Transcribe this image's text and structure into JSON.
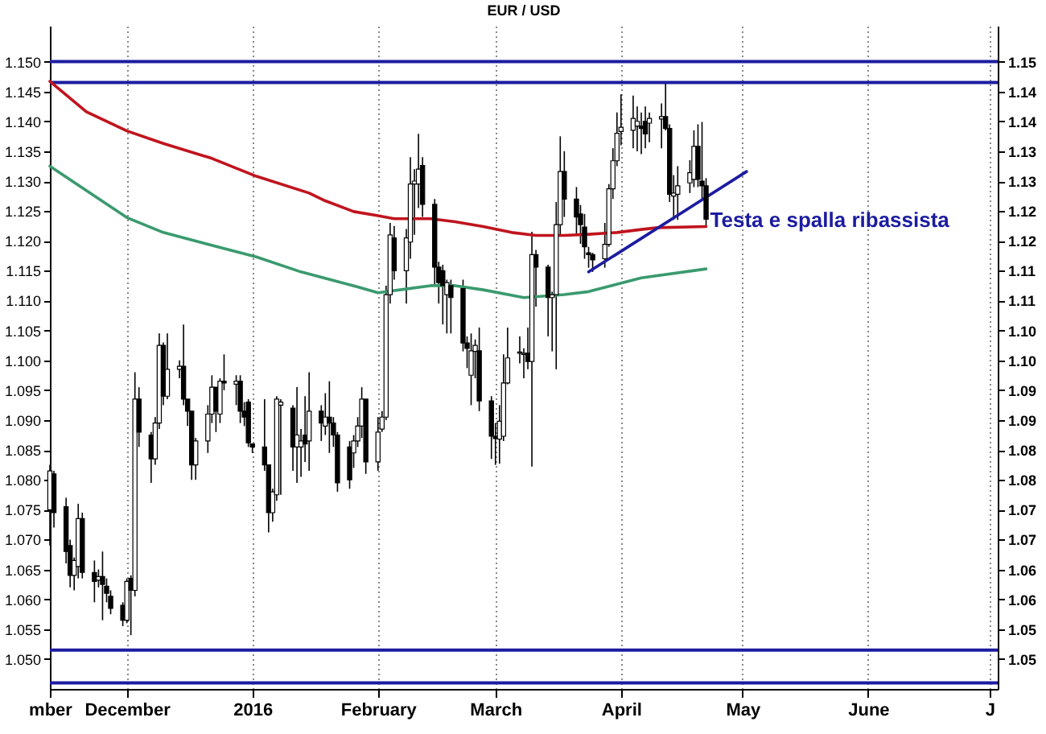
{
  "chart_data": {
    "type": "candlestick",
    "title": "EUR / USD",
    "x": [
      "2015-11-12",
      "2015-11-13",
      "2015-11-16",
      "2015-11-17",
      "2015-11-18",
      "2015-11-19",
      "2015-11-20",
      "2015-11-23",
      "2015-11-24",
      "2015-11-25",
      "2015-11-26",
      "2015-11-27",
      "2015-11-30",
      "2015-12-01",
      "2015-12-02",
      "2015-12-03",
      "2015-12-04",
      "2015-12-07",
      "2015-12-08",
      "2015-12-09",
      "2015-12-10",
      "2015-12-11",
      "2015-12-14",
      "2015-12-15",
      "2015-12-16",
      "2015-12-17",
      "2015-12-18",
      "2015-12-21",
      "2015-12-22",
      "2015-12-23",
      "2015-12-24",
      "2015-12-25",
      "2015-12-28",
      "2015-12-29",
      "2015-12-30",
      "2015-12-31",
      "2016-01-01",
      "2016-01-04",
      "2016-01-05",
      "2016-01-06",
      "2016-01-07",
      "2016-01-08",
      "2016-01-11",
      "2016-01-12",
      "2016-01-13",
      "2016-01-14",
      "2016-01-15",
      "2016-01-18",
      "2016-01-19",
      "2016-01-20",
      "2016-01-21",
      "2016-01-22",
      "2016-01-25",
      "2016-01-26",
      "2016-01-27",
      "2016-01-28",
      "2016-01-29",
      "2016-02-01",
      "2016-02-02",
      "2016-02-03",
      "2016-02-04",
      "2016-02-05",
      "2016-02-08",
      "2016-02-09",
      "2016-02-10",
      "2016-02-11",
      "2016-02-12",
      "2016-02-15",
      "2016-02-16",
      "2016-02-17",
      "2016-02-18",
      "2016-02-19",
      "2016-02-22",
      "2016-02-23",
      "2016-02-24",
      "2016-02-25",
      "2016-02-26",
      "2016-02-29",
      "2016-03-01",
      "2016-03-02",
      "2016-03-03",
      "2016-03-04",
      "2016-03-07",
      "2016-03-08",
      "2016-03-09",
      "2016-03-10",
      "2016-03-11",
      "2016-03-14",
      "2016-03-15",
      "2016-03-16",
      "2016-03-17",
      "2016-03-18",
      "2016-03-21",
      "2016-03-22",
      "2016-03-23",
      "2016-03-24",
      "2016-03-25",
      "2016-03-28",
      "2016-03-29",
      "2016-03-30",
      "2016-03-31",
      "2016-04-01",
      "2016-04-04",
      "2016-04-05",
      "2016-04-06",
      "2016-04-07",
      "2016-04-08",
      "2016-04-11",
      "2016-04-12",
      "2016-04-13",
      "2016-04-14",
      "2016-04-15",
      "2016-04-18",
      "2016-04-19",
      "2016-04-20",
      "2016-04-21",
      "2016-04-22"
    ],
    "ohlc": [
      [
        1.075,
        1.0825,
        1.069,
        1.0815
      ],
      [
        1.081,
        1.0815,
        1.072,
        1.0745
      ],
      [
        1.0755,
        1.077,
        1.066,
        1.068
      ],
      [
        1.069,
        1.07,
        1.062,
        1.064
      ],
      [
        1.064,
        1.067,
        1.0615,
        1.0665
      ],
      [
        1.0655,
        1.076,
        1.0635,
        1.0735
      ],
      [
        1.0735,
        1.0745,
        1.0635,
        1.0645
      ],
      [
        1.0645,
        1.0665,
        1.0595,
        1.063
      ],
      [
        1.0632,
        1.065,
        1.062,
        1.0638
      ],
      [
        1.0638,
        1.068,
        1.0565,
        1.0625
      ],
      [
        1.0622,
        1.0635,
        1.0595,
        1.061
      ],
      [
        1.0605,
        1.0615,
        1.0575,
        1.0585
      ],
      [
        1.059,
        1.0595,
        1.0555,
        1.0565
      ],
      [
        1.0565,
        1.0635,
        1.056,
        1.063
      ],
      [
        1.0635,
        1.064,
        1.054,
        1.0615
      ],
      [
        1.0615,
        1.098,
        1.0605,
        1.0935
      ],
      [
        1.0935,
        1.0955,
        1.0855,
        1.088
      ],
      [
        1.0875,
        1.088,
        1.0795,
        1.0835
      ],
      [
        1.0835,
        1.0905,
        1.0825,
        1.0895
      ],
      [
        1.0895,
        1.1045,
        1.0885,
        1.1025
      ],
      [
        1.1025,
        1.103,
        1.0925,
        1.094
      ],
      [
        1.094,
        1.1045,
        1.0935,
        1.0985
      ],
      [
        1.0985,
        1.1,
        1.097,
        1.099
      ],
      [
        1.099,
        1.106,
        1.0925,
        1.0935
      ],
      [
        1.0935,
        1.0935,
        1.089,
        1.0915
      ],
      [
        1.0915,
        1.0915,
        1.08,
        1.0825
      ],
      [
        1.0825,
        1.087,
        1.08,
        1.0865
      ],
      [
        1.0865,
        1.0925,
        1.0845,
        1.091
      ],
      [
        1.091,
        1.0975,
        1.0895,
        1.0955
      ],
      [
        1.0955,
        1.0955,
        1.088,
        1.0915
      ],
      [
        1.091,
        1.097,
        1.0895,
        1.0965
      ],
      [
        1.0965,
        1.101,
        1.095,
        1.0962
      ],
      [
        1.096,
        1.0975,
        1.0925,
        1.0965
      ],
      [
        1.0965,
        1.0975,
        1.0895,
        1.0915
      ],
      [
        1.0915,
        1.093,
        1.089,
        1.0905
      ],
      [
        1.093,
        1.0935,
        1.0855,
        1.0862
      ],
      [
        1.086,
        1.086,
        1.0845,
        1.0855
      ],
      [
        1.0855,
        1.0935,
        1.0815,
        1.0825
      ],
      [
        1.0825,
        1.0825,
        1.0712,
        1.0745
      ],
      [
        1.0745,
        1.0785,
        1.073,
        1.078
      ],
      [
        1.0775,
        1.094,
        1.0765,
        1.0935
      ],
      [
        1.0925,
        1.0935,
        1.0775,
        1.093
      ],
      [
        1.092,
        1.0925,
        1.0815,
        1.0855
      ],
      [
        1.0855,
        1.0955,
        1.0795,
        1.0875
      ],
      [
        1.0855,
        1.0885,
        1.0805,
        1.0865
      ],
      [
        1.0875,
        1.094,
        1.083,
        1.086
      ],
      [
        1.0865,
        1.098,
        1.0815,
        1.0915
      ],
      [
        1.0915,
        1.0925,
        1.0865,
        1.0895
      ],
      [
        1.089,
        1.0945,
        1.0875,
        1.0905
      ],
      [
        1.0905,
        1.0965,
        1.0845,
        1.0895
      ],
      [
        1.0895,
        1.0905,
        1.0855,
        1.0875
      ],
      [
        1.0875,
        1.088,
        1.078,
        1.0795
      ],
      [
        1.0855,
        1.0865,
        1.0785,
        1.08
      ],
      [
        1.0845,
        1.0875,
        1.082,
        1.0865
      ],
      [
        1.0865,
        1.0905,
        1.0855,
        1.089
      ],
      [
        1.089,
        1.0955,
        1.087,
        1.0935
      ],
      [
        1.0935,
        1.0935,
        1.081,
        1.083
      ],
      [
        1.083,
        1.0905,
        1.0815,
        1.088
      ],
      [
        1.0885,
        1.0915,
        1.088,
        1.0905
      ],
      [
        1.0905,
        1.1125,
        1.09,
        1.111
      ],
      [
        1.111,
        1.123,
        1.1095,
        1.121
      ],
      [
        1.1205,
        1.1225,
        1.1135,
        1.115
      ],
      [
        1.115,
        1.122,
        1.1095,
        1.1205
      ],
      [
        1.1198,
        1.134,
        1.117,
        1.1295
      ],
      [
        1.1295,
        1.132,
        1.121,
        1.13
      ],
      [
        1.1295,
        1.1379,
        1.1255,
        1.132
      ],
      [
        1.1326,
        1.134,
        1.124,
        1.1261
      ],
      [
        1.1261,
        1.127,
        1.1125,
        1.1156
      ],
      [
        1.1156,
        1.1165,
        1.1095,
        1.113
      ],
      [
        1.115,
        1.116,
        1.106,
        1.1125
      ],
      [
        1.111,
        1.1135,
        1.1045,
        1.113
      ],
      [
        1.1125,
        1.1135,
        1.1045,
        1.1105
      ],
      [
        1.112,
        1.1135,
        1.1015,
        1.1029
      ],
      [
        1.1029,
        1.104,
        1.0987,
        1.102
      ],
      [
        1.0975,
        1.1045,
        1.0925,
        1.1016
      ],
      [
        1.1015,
        1.1035,
        1.097,
        1.1025
      ],
      [
        1.1016,
        1.1055,
        1.0915,
        1.0932
      ],
      [
        1.0932,
        1.094,
        1.0835,
        1.0873
      ],
      [
        1.0873,
        1.0895,
        1.0825,
        1.0869
      ],
      [
        1.0868,
        1.0925,
        1.0827,
        1.0898
      ],
      [
        1.0873,
        1.101,
        1.0865,
        1.0962
      ],
      [
        1.0962,
        1.1055,
        1.096,
        1.1004
      ],
      [
        1.1012,
        1.104,
        1.0995,
        1.1014
      ],
      [
        1.101,
        1.102,
        1.097,
        1.1012
      ],
      [
        1.1012,
        1.1055,
        1.0985,
        1.0998
      ],
      [
        1.0998,
        1.1215,
        1.0822,
        1.1177
      ],
      [
        1.1177,
        1.1185,
        1.109,
        1.1156
      ],
      [
        1.1156,
        1.116,
        1.104,
        1.1105
      ],
      [
        1.1105,
        1.1115,
        1.1015,
        1.111
      ],
      [
        1.111,
        1.1265,
        1.0985,
        1.1227
      ],
      [
        1.1227,
        1.1375,
        1.121,
        1.1316
      ],
      [
        1.1316,
        1.135,
        1.124,
        1.127
      ],
      [
        1.127,
        1.129,
        1.121,
        1.124
      ],
      [
        1.1245,
        1.126,
        1.1195,
        1.1227
      ],
      [
        1.1223,
        1.1245,
        1.117,
        1.119
      ],
      [
        1.118,
        1.119,
        1.1155,
        1.1177
      ],
      [
        1.1177,
        1.118,
        1.1148,
        1.1168
      ],
      [
        1.117,
        1.123,
        1.1155,
        1.1194
      ],
      [
        1.1194,
        1.1295,
        1.119,
        1.1287
      ],
      [
        1.1287,
        1.1355,
        1.127,
        1.1334
      ],
      [
        1.1334,
        1.1415,
        1.1325,
        1.138
      ],
      [
        1.1383,
        1.1445,
        1.136,
        1.139
      ],
      [
        1.1385,
        1.1443,
        1.1355,
        1.1405
      ],
      [
        1.1392,
        1.1425,
        1.135,
        1.14
      ],
      [
        1.1392,
        1.1415,
        1.1345,
        1.1388
      ],
      [
        1.14,
        1.1425,
        1.1355,
        1.1379
      ],
      [
        1.1397,
        1.1415,
        1.1365,
        1.1405
      ],
      [
        1.1404,
        1.143,
        1.1355,
        1.1408
      ],
      [
        1.1408,
        1.1465,
        1.1385,
        1.1388
      ],
      [
        1.1388,
        1.1395,
        1.1265,
        1.1278
      ],
      [
        1.1275,
        1.131,
        1.1235,
        1.128
      ],
      [
        1.1278,
        1.1325,
        1.1235,
        1.1292
      ],
      [
        1.1297,
        1.1335,
        1.128,
        1.1314
      ],
      [
        1.1303,
        1.1385,
        1.129,
        1.1358
      ],
      [
        1.1358,
        1.1395,
        1.129,
        1.1303
      ],
      [
        1.13,
        1.1399,
        1.127,
        1.1292
      ],
      [
        1.1292,
        1.1305,
        1.1223,
        1.1236
      ]
    ],
    "series": [
      {
        "type": "line",
        "color": "#c0141e",
        "x": [
          "2015-11-12",
          "2015-11-21",
          "2015-12-01",
          "2015-12-10",
          "2015-12-22",
          "2016-01-02",
          "2016-01-15",
          "2016-01-19",
          "2016-01-26",
          "2016-02-01",
          "2016-02-05",
          "2016-02-14",
          "2016-02-20",
          "2016-02-27",
          "2016-03-05",
          "2016-03-11",
          "2016-03-18",
          "2016-03-24",
          "2016-03-31",
          "2016-04-06",
          "2016-04-10",
          "2016-04-22"
        ],
        "values": [
          1.1467,
          1.1416,
          1.1384,
          1.1363,
          1.1338,
          1.1308,
          1.128,
          1.1267,
          1.1249,
          1.1242,
          1.1237,
          1.1237,
          1.1232,
          1.1224,
          1.1214,
          1.1209,
          1.1209,
          1.1211,
          1.1214,
          1.1219,
          1.1222,
          1.1224
        ]
      },
      {
        "type": "line",
        "color": "#3a9a6e",
        "x": [
          "2015-11-12",
          "2015-12-01",
          "2015-12-10",
          "2016-01-02",
          "2016-01-13",
          "2016-01-27",
          "2016-02-01",
          "2016-02-14",
          "2016-02-20",
          "2016-02-27",
          "2016-03-08",
          "2016-03-18",
          "2016-03-24",
          "2016-04-06",
          "2016-04-22"
        ],
        "values": [
          1.1325,
          1.1239,
          1.1214,
          1.1173,
          1.1148,
          1.1123,
          1.1113,
          1.1125,
          1.1125,
          1.1118,
          1.1105,
          1.111,
          1.1115,
          1.1138,
          1.1153
        ]
      },
      {
        "type": "line",
        "color": "#1c1ca0",
        "x": [
          "2016-03-24",
          "2016-05-02"
        ],
        "values": [
          1.1148,
          1.1316
        ]
      }
    ],
    "ref_lines": [
      {
        "axis": "y",
        "value": 1.15,
        "color": "#1c1ca0"
      },
      {
        "axis": "y",
        "value": 1.1465,
        "color": "#1c1ca0"
      },
      {
        "axis": "y",
        "value": 1.0515,
        "color": "#1c1ca0"
      },
      {
        "axis": "y",
        "value": 1.046,
        "color": "#1c1ca0"
      }
    ],
    "annotations": [
      {
        "text": "Testa e spalla ribassista",
        "x": "2016-04-23",
        "y": 1.1234
      }
    ],
    "xlim": [
      "2015-11-12",
      "2016-07-03"
    ],
    "xticks": [
      {
        "value": "2015-11-12",
        "label": "mber"
      },
      {
        "value": "2015-12-01",
        "label": "December"
      },
      {
        "value": "2016-01-01",
        "label": "2016"
      },
      {
        "value": "2016-02-01",
        "label": "February"
      },
      {
        "value": "2016-03-01",
        "label": "March"
      },
      {
        "value": "2016-04-01",
        "label": "April"
      },
      {
        "value": "2016-05-01",
        "label": "May"
      },
      {
        "value": "2016-06-01",
        "label": "June"
      },
      {
        "value": "2016-07-01",
        "label": "J"
      }
    ],
    "ylim": [
      1.045,
      1.156
    ],
    "yticks": [
      {
        "value": 1.05,
        "label": "1.050"
      },
      {
        "value": 1.055,
        "label": "1.055"
      },
      {
        "value": 1.06,
        "label": "1.060"
      },
      {
        "value": 1.065,
        "label": "1.065"
      },
      {
        "value": 1.07,
        "label": "1.070"
      },
      {
        "value": 1.075,
        "label": "1.075"
      },
      {
        "value": 1.08,
        "label": "1.080"
      },
      {
        "value": 1.085,
        "label": "1.085"
      },
      {
        "value": 1.09,
        "label": "1.090"
      },
      {
        "value": 1.095,
        "label": "1.095"
      },
      {
        "value": 1.1,
        "label": "1.100"
      },
      {
        "value": 1.105,
        "label": "1.105"
      },
      {
        "value": 1.11,
        "label": "1.110"
      },
      {
        "value": 1.115,
        "label": "1.115"
      },
      {
        "value": 1.12,
        "label": "1.120"
      },
      {
        "value": 1.125,
        "label": "1.125"
      },
      {
        "value": 1.13,
        "label": "1.130"
      },
      {
        "value": 1.135,
        "label": "1.135"
      },
      {
        "value": 1.14,
        "label": "1.140"
      },
      {
        "value": 1.145,
        "label": "1.145"
      },
      {
        "value": 1.15,
        "label": "1.150"
      }
    ],
    "y2lim": [
      1.045,
      1.156
    ],
    "y2ticks": [
      {
        "value": 1.05,
        "label": "1.05"
      },
      {
        "value": 1.055,
        "label": "1.05"
      },
      {
        "value": 1.06,
        "label": "1.06"
      },
      {
        "value": 1.065,
        "label": "1.06"
      },
      {
        "value": 1.07,
        "label": "1.07"
      },
      {
        "value": 1.075,
        "label": "1.07"
      },
      {
        "value": 1.08,
        "label": "1.08"
      },
      {
        "value": 1.085,
        "label": "1.08"
      },
      {
        "value": 1.09,
        "label": "1.09"
      },
      {
        "value": 1.095,
        "label": "1.09"
      },
      {
        "value": 1.1,
        "label": "1.10"
      },
      {
        "value": 1.105,
        "label": "1.10"
      },
      {
        "value": 1.11,
        "label": "1.11"
      },
      {
        "value": 1.115,
        "label": "1.11"
      },
      {
        "value": 1.12,
        "label": "1.12"
      },
      {
        "value": 1.125,
        "label": "1.12"
      },
      {
        "value": 1.13,
        "label": "1.13"
      },
      {
        "value": 1.135,
        "label": "1.13"
      },
      {
        "value": 1.14,
        "label": "1.14"
      },
      {
        "value": 1.145,
        "label": "1.14"
      },
      {
        "value": 1.15,
        "label": "1.15"
      }
    ],
    "grid": "x"
  }
}
